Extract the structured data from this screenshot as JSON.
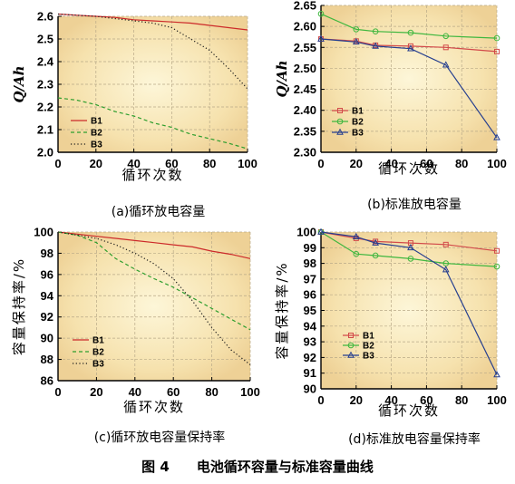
{
  "figure_title": "图 4　　电池循环容量与标准容量曲线",
  "series_colors": {
    "B1": "#cc2a2a",
    "B2": "#2e9e2e",
    "B3": "#1a1a1a",
    "B1s": "#d24a4a",
    "B2s": "#3fb73f",
    "B3s": "#263f8f"
  },
  "chart_data": [
    {
      "id": "a",
      "type": "line",
      "caption": "(a)循环放电容量",
      "xlabel": "循环次数",
      "ylabel": "Q/Ah",
      "xlim": [
        0,
        100
      ],
      "ylim": [
        2.0,
        2.6
      ],
      "xticks": [
        0,
        20,
        40,
        60,
        80,
        100
      ],
      "yticks": [
        2.0,
        2.1,
        2.2,
        2.3,
        2.4,
        2.5,
        2.6
      ],
      "ytick_labels": [
        "2.0",
        "2.1",
        "2.2",
        "2.3",
        "2.4",
        "2.5",
        "2.6"
      ],
      "grid": true,
      "legend": "bottom-left",
      "series": [
        {
          "name": "B1",
          "style": "solid",
          "x": [
            0,
            10,
            20,
            30,
            40,
            50,
            60,
            70,
            80,
            90,
            100
          ],
          "values": [
            2.61,
            2.605,
            2.6,
            2.595,
            2.585,
            2.58,
            2.575,
            2.57,
            2.56,
            2.55,
            2.54
          ]
        },
        {
          "name": "B2",
          "style": "dashed",
          "x": [
            0,
            10,
            20,
            30,
            40,
            50,
            60,
            70,
            80,
            90,
            100
          ],
          "values": [
            2.24,
            2.23,
            2.21,
            2.18,
            2.16,
            2.13,
            2.11,
            2.08,
            2.06,
            2.04,
            2.015
          ]
        },
        {
          "name": "B3",
          "style": "dotted",
          "x": [
            0,
            10,
            20,
            30,
            40,
            50,
            60,
            70,
            80,
            90,
            100
          ],
          "values": [
            2.61,
            2.605,
            2.6,
            2.59,
            2.58,
            2.57,
            2.55,
            2.5,
            2.45,
            2.37,
            2.28
          ]
        }
      ]
    },
    {
      "id": "b",
      "type": "line",
      "caption": "(b)标准放电容量",
      "xlabel": "循环次数",
      "ylabel": "Q/Ah",
      "xlim": [
        0,
        100
      ],
      "ylim": [
        2.3,
        2.65
      ],
      "xticks": [
        0,
        20,
        40,
        60,
        80,
        100
      ],
      "yticks": [
        2.3,
        2.35,
        2.4,
        2.45,
        2.5,
        2.55,
        2.6,
        2.65
      ],
      "ytick_labels": [
        "2.30",
        "2.35",
        "2.40",
        "2.45",
        "2.50",
        "2.55",
        "2.60",
        "2.65"
      ],
      "grid": true,
      "legend": "middle-left",
      "series": [
        {
          "name": "B1",
          "marker": "square",
          "x": [
            0,
            20,
            31,
            51,
            71,
            100
          ],
          "values": [
            2.57,
            2.565,
            2.555,
            2.553,
            2.55,
            2.54
          ]
        },
        {
          "name": "B2",
          "marker": "circle",
          "x": [
            0,
            20,
            31,
            51,
            71,
            100
          ],
          "values": [
            2.63,
            2.593,
            2.588,
            2.585,
            2.577,
            2.572
          ]
        },
        {
          "name": "B3",
          "marker": "triangle",
          "x": [
            0,
            20,
            31,
            51,
            71,
            100
          ],
          "values": [
            2.57,
            2.563,
            2.553,
            2.547,
            2.508,
            2.335
          ]
        }
      ]
    },
    {
      "id": "c",
      "type": "line",
      "caption": "(c)循环放电容量保持率",
      "xlabel": "循环次数",
      "ylabel": "容量保持率/%",
      "xlim": [
        0,
        100
      ],
      "ylim": [
        86,
        100
      ],
      "xticks": [
        0,
        20,
        40,
        60,
        80,
        100
      ],
      "yticks": [
        86,
        88,
        90,
        92,
        94,
        96,
        98,
        100
      ],
      "ytick_labels": [
        "86",
        "88",
        "90",
        "92",
        "94",
        "96",
        "98",
        "100"
      ],
      "grid": true,
      "legend": "bottom-left",
      "series": [
        {
          "name": "B1",
          "style": "solid",
          "x": [
            0,
            10,
            20,
            30,
            40,
            50,
            60,
            70,
            80,
            90,
            100
          ],
          "values": [
            100,
            99.8,
            99.6,
            99.4,
            99.2,
            99.0,
            98.8,
            98.6,
            98.2,
            97.9,
            97.5
          ]
        },
        {
          "name": "B2",
          "style": "dashed",
          "x": [
            0,
            10,
            20,
            30,
            40,
            50,
            60,
            70,
            80,
            90,
            100
          ],
          "values": [
            100,
            99.7,
            99.0,
            97.5,
            96.5,
            95.6,
            94.8,
            93.8,
            92.8,
            91.8,
            90.8
          ]
        },
        {
          "name": "B3",
          "style": "dotted",
          "x": [
            0,
            10,
            20,
            30,
            40,
            50,
            60,
            70,
            80,
            90,
            100
          ],
          "values": [
            100,
            99.7,
            99.4,
            98.8,
            98.0,
            97.0,
            95.6,
            93.5,
            91.0,
            88.9,
            87.5
          ]
        }
      ]
    },
    {
      "id": "d",
      "type": "line",
      "caption": "(d)标准放电容量保持率",
      "xlabel": "循环次数",
      "ylabel": "容量保持率/%",
      "xlim": [
        0,
        100
      ],
      "ylim": [
        90,
        100
      ],
      "xticks": [
        0,
        20,
        40,
        60,
        80,
        100
      ],
      "yticks": [
        90,
        91,
        92,
        93,
        94,
        95,
        96,
        97,
        98,
        99,
        100
      ],
      "ytick_labels": [
        "90",
        "91",
        "92",
        "93",
        "94",
        "95",
        "96",
        "97",
        "98",
        "99",
        "100"
      ],
      "grid": true,
      "legend": "bottom-left",
      "series": [
        {
          "name": "B1",
          "marker": "square",
          "x": [
            0,
            20,
            31,
            51,
            71,
            100
          ],
          "values": [
            100,
            99.6,
            99.4,
            99.3,
            99.2,
            98.8
          ]
        },
        {
          "name": "B2",
          "marker": "circle",
          "x": [
            0,
            20,
            31,
            51,
            71,
            100
          ],
          "values": [
            100,
            98.6,
            98.5,
            98.3,
            98.0,
            97.8
          ]
        },
        {
          "name": "B3",
          "marker": "triangle",
          "x": [
            0,
            20,
            31,
            51,
            71,
            100
          ],
          "values": [
            100,
            99.7,
            99.3,
            99.0,
            97.6,
            90.9
          ]
        }
      ]
    }
  ]
}
